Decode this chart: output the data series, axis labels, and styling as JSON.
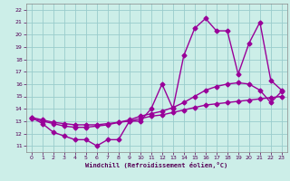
{
  "bg_color": "#cceee8",
  "grid_color": "#99cccc",
  "line_color": "#990099",
  "marker": "D",
  "markersize": 2.5,
  "linewidth": 1.0,
  "xlim": [
    -0.5,
    23.5
  ],
  "ylim": [
    10.5,
    22.5
  ],
  "xlabel": "Windchill (Refroidissement éolien,°C)",
  "xticks": [
    0,
    1,
    2,
    3,
    4,
    5,
    6,
    7,
    8,
    9,
    10,
    11,
    12,
    13,
    14,
    15,
    16,
    17,
    18,
    19,
    20,
    21,
    22,
    23
  ],
  "yticks": [
    11,
    12,
    13,
    14,
    15,
    16,
    17,
    18,
    19,
    20,
    21,
    22
  ],
  "line1_x": [
    0,
    1,
    2,
    3,
    4,
    5,
    6,
    7,
    8,
    9,
    10,
    11,
    12,
    13,
    14,
    15,
    16,
    17,
    18,
    19,
    20,
    21,
    22,
    23
  ],
  "line1_y": [
    13.3,
    12.8,
    12.1,
    11.8,
    11.5,
    11.5,
    11.0,
    11.5,
    11.5,
    13.0,
    13.0,
    14.0,
    16.0,
    14.0,
    18.3,
    20.5,
    21.3,
    20.3,
    20.3,
    16.8,
    19.3,
    21.0,
    16.3,
    15.5
  ],
  "line2_x": [
    0,
    1,
    2,
    3,
    4,
    5,
    6,
    7,
    8,
    9,
    10,
    11,
    12,
    13,
    14,
    15,
    16,
    17,
    18,
    19,
    20,
    21,
    22,
    23
  ],
  "line2_y": [
    13.2,
    13.0,
    12.8,
    12.6,
    12.5,
    12.5,
    12.6,
    12.7,
    12.9,
    13.1,
    13.4,
    13.6,
    13.8,
    14.1,
    14.5,
    15.0,
    15.5,
    15.8,
    16.0,
    16.1,
    16.0,
    15.5,
    14.5,
    15.4
  ],
  "line3_x": [
    0,
    1,
    2,
    3,
    4,
    5,
    6,
    7,
    8,
    9,
    10,
    11,
    12,
    13,
    14,
    15,
    16,
    17,
    18,
    19,
    20,
    21,
    22,
    23
  ],
  "line3_y": [
    13.3,
    13.1,
    12.9,
    12.8,
    12.7,
    12.7,
    12.7,
    12.8,
    12.9,
    13.0,
    13.2,
    13.4,
    13.5,
    13.7,
    13.9,
    14.1,
    14.3,
    14.4,
    14.5,
    14.6,
    14.7,
    14.8,
    14.9,
    15.0
  ]
}
